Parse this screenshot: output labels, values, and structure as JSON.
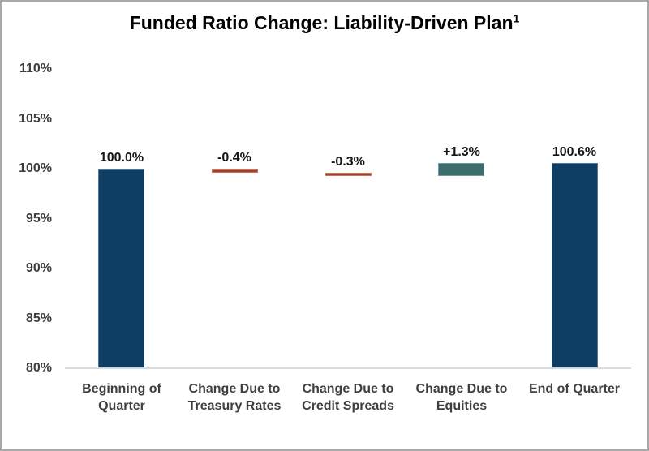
{
  "title": {
    "text": "Funded Ratio Change: Liability-Driven Plan",
    "superscript": "1"
  },
  "colors": {
    "navy": "#0e3d63",
    "red": "#a63c24",
    "teal": "#3d6c6e",
    "axis_line": "#d9d9d9",
    "axis_text": "#3d3d3d",
    "data_label_text": "#151515",
    "title_text": "#000000",
    "frame_border": "#a9a9a9",
    "background": "#ffffff"
  },
  "chart_data": {
    "type": "bar",
    "subtype": "waterfall",
    "title": "Funded Ratio Change: Liability-Driven Plan¹",
    "xlabel": "",
    "ylabel": "",
    "ylim": [
      80,
      110
    ],
    "ytick_step": 5,
    "ytick_labels": [
      "80%",
      "85%",
      "90%",
      "95%",
      "100%",
      "105%",
      "110%"
    ],
    "grid": false,
    "legend": null,
    "categories": [
      "Beginning of Quarter",
      "Change Due to Treasury Rates",
      "Change Due to Credit Spreads",
      "Change Due to Equities",
      "End of Quarter"
    ],
    "bars": [
      {
        "category": "Beginning of Quarter",
        "value": 100.0,
        "label": "100.0%",
        "from": 80.0,
        "to": 100.0,
        "color": "navy"
      },
      {
        "category": "Change Due to Treasury Rates",
        "value": -0.4,
        "label": "-0.4%",
        "from": 99.6,
        "to": 100.0,
        "color": "red"
      },
      {
        "category": "Change Due to Credit Spreads",
        "value": -0.3,
        "label": "-0.3%",
        "from": 99.3,
        "to": 99.6,
        "color": "red"
      },
      {
        "category": "Change Due to Equities",
        "value": 1.3,
        "label": "+1.3%",
        "from": 99.3,
        "to": 100.6,
        "color": "teal"
      },
      {
        "category": "End of Quarter",
        "value": 100.6,
        "label": "100.6%",
        "from": 80.0,
        "to": 100.6,
        "color": "navy"
      }
    ]
  }
}
